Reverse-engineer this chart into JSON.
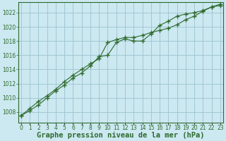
{
  "title": "Graphe pression niveau de la mer (hPa)",
  "x_labels": [
    "0",
    "1",
    "2",
    "3",
    "4",
    "5",
    "6",
    "7",
    "8",
    "9",
    "10",
    "11",
    "12",
    "13",
    "14",
    "15",
    "16",
    "17",
    "18",
    "19",
    "20",
    "21",
    "22",
    "23"
  ],
  "line1_x": [
    0,
    1,
    2,
    3,
    4,
    5,
    6,
    7,
    8,
    9,
    10,
    11,
    12,
    13,
    14,
    15,
    16,
    17,
    18,
    19,
    20,
    21,
    22,
    23
  ],
  "line1_y": [
    1007.5,
    1008.5,
    1009.5,
    1010.3,
    1011.2,
    1012.3,
    1013.2,
    1014.0,
    1014.8,
    1015.5,
    1017.8,
    1018.2,
    1018.5,
    1018.5,
    1018.8,
    1019.2,
    1019.5,
    1019.8,
    1020.3,
    1021.0,
    1021.5,
    1022.2,
    1022.8,
    1023.2
  ],
  "line2_x": [
    0,
    1,
    2,
    3,
    4,
    5,
    6,
    7,
    8,
    9,
    10,
    11,
    12,
    13,
    14,
    15,
    16,
    17,
    18,
    19,
    20,
    21,
    22,
    23
  ],
  "line2_y": [
    1007.5,
    1008.2,
    1009.0,
    1010.0,
    1011.0,
    1011.8,
    1012.8,
    1013.5,
    1014.5,
    1015.8,
    1016.0,
    1017.8,
    1018.3,
    1018.0,
    1018.0,
    1019.0,
    1020.2,
    1020.8,
    1021.5,
    1021.8,
    1022.0,
    1022.3,
    1022.8,
    1023.0
  ],
  "line_color": "#2d6a2d",
  "marker": "+",
  "marker_size": 5,
  "bg_color": "#cce8f0",
  "grid_color": "#9ac4d0",
  "text_color": "#2d6a2d",
  "ylim": [
    1006.5,
    1023.5
  ],
  "yticks": [
    1008,
    1010,
    1012,
    1014,
    1016,
    1018,
    1020,
    1022
  ],
  "xlim": [
    -0.3,
    23.3
  ],
  "title_fontsize": 7.5,
  "tick_fontsize": 5.5,
  "lw": 0.8
}
